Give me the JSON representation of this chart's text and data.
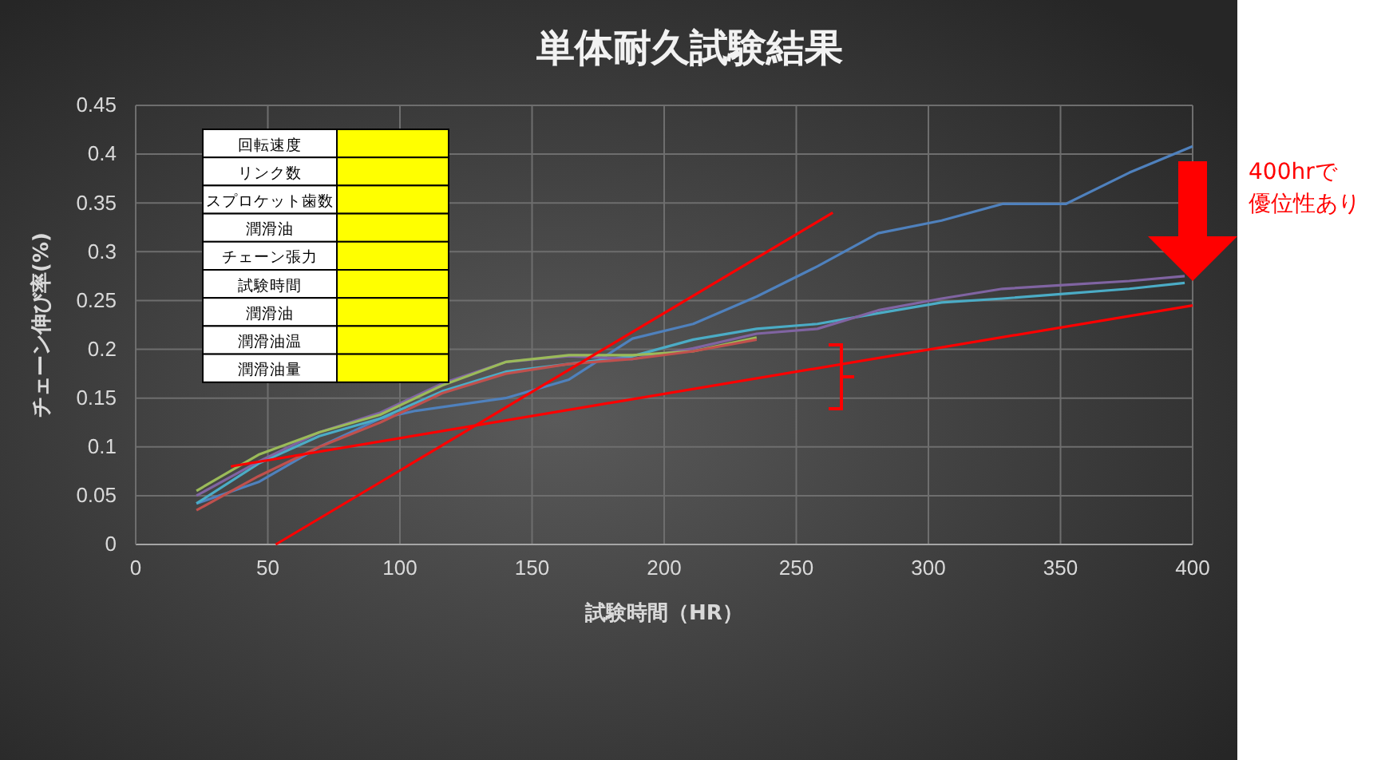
{
  "chart_data": {
    "type": "line",
    "title": "単体耐久試験結果",
    "xlabel": "試験時間（HR）",
    "ylabel": "チェーン伸び率(%)",
    "xlim": [
      0,
      400
    ],
    "xticks": [
      0,
      50,
      100,
      150,
      200,
      250,
      300,
      350,
      400
    ],
    "ylim": [
      0,
      0.45
    ],
    "yticks": [
      0,
      0.05,
      0.1,
      0.15,
      0.2,
      0.25,
      0.3,
      0.35,
      0.4,
      0.45
    ],
    "grid": true,
    "marker": "none",
    "line_style": "solid",
    "series": [
      {
        "color": "#4f81bd",
        "x": [
          23,
          46.5,
          69.5,
          92.5,
          106,
          140,
          164,
          188,
          211,
          235,
          258,
          281,
          305,
          328,
          352,
          376,
          400
        ],
        "values": [
          0.042,
          0.064,
          0.1,
          0.129,
          0.137,
          0.15,
          0.169,
          0.211,
          0.226,
          0.254,
          0.285,
          0.319,
          0.332,
          0.349,
          0.349,
          0.381,
          0.408
        ]
      },
      {
        "color": "#4bacc6",
        "x": [
          23,
          46.5,
          69.5,
          92.5,
          116,
          140,
          164,
          188,
          211,
          235,
          258,
          281,
          305,
          328,
          352,
          376,
          397
        ],
        "values": [
          0.042,
          0.083,
          0.111,
          0.129,
          0.157,
          0.177,
          0.185,
          0.193,
          0.21,
          0.221,
          0.226,
          0.237,
          0.248,
          0.252,
          0.257,
          0.262,
          0.268
        ]
      },
      {
        "color": "#8064a2",
        "x": [
          23,
          46.5,
          69.5,
          92.5,
          116,
          140,
          164,
          188,
          211,
          235,
          258,
          281,
          305,
          328,
          352,
          376,
          397
        ],
        "values": [
          0.05,
          0.085,
          0.115,
          0.135,
          0.165,
          0.187,
          0.193,
          0.19,
          0.201,
          0.216,
          0.221,
          0.24,
          0.252,
          0.262,
          0.266,
          0.27,
          0.275
        ]
      },
      {
        "color": "#9bbb59",
        "x": [
          23,
          46.5,
          69.5,
          92.5,
          116,
          140,
          164,
          188,
          211,
          235
        ],
        "values": [
          0.055,
          0.092,
          0.115,
          0.133,
          0.163,
          0.187,
          0.194,
          0.194,
          0.198,
          0.212
        ]
      },
      {
        "color": "#c0504d",
        "x": [
          23,
          46.5,
          69.5,
          92.5,
          116,
          140,
          164,
          188,
          211,
          235
        ],
        "values": [
          0.035,
          0.07,
          0.1,
          0.125,
          0.155,
          0.175,
          0.185,
          0.19,
          0.198,
          0.21
        ]
      },
      {
        "color": "#ff0000",
        "x": [
          53,
          263.8
        ],
        "values": [
          0,
          0.34
        ]
      },
      {
        "color": "#ff0000",
        "x": [
          36,
          400
        ],
        "values": [
          0.08,
          0.245
        ]
      }
    ],
    "annotations": [
      "回転速度",
      "リンク数",
      "スプロケット歯数",
      "潤滑油",
      "チェーン張力",
      "試験時間",
      "潤滑油",
      "潤滑油温",
      "潤滑油量",
      "400hrで優位性あり"
    ]
  }
}
